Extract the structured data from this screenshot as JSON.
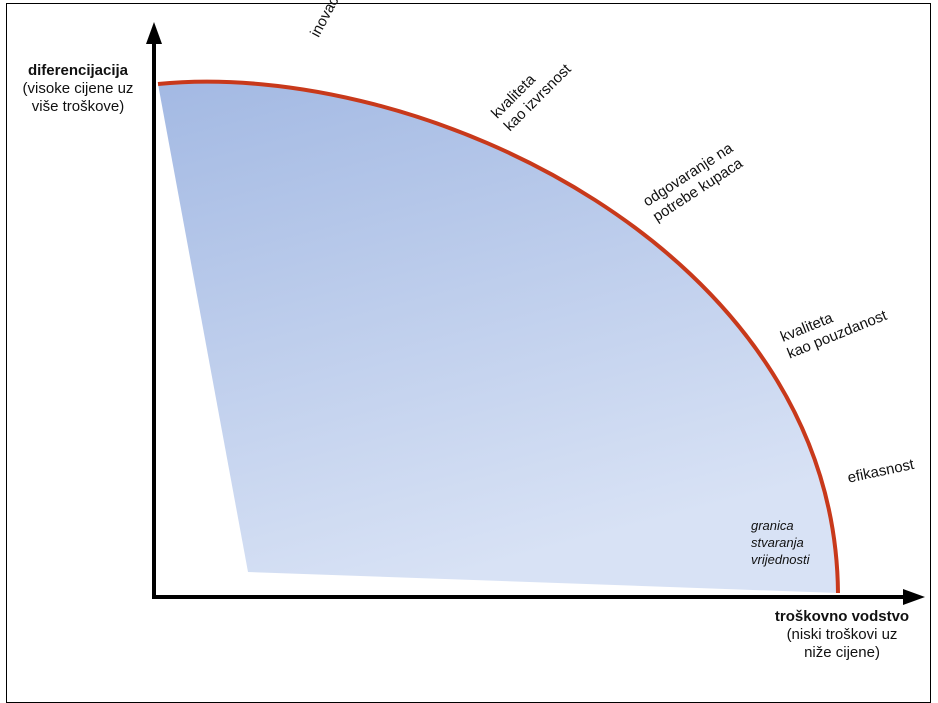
{
  "y_axis": {
    "title": "diferencijacija",
    "subtitle_lines": [
      "(visoke cijene uz",
      "više troškove)"
    ]
  },
  "x_axis": {
    "title": "troškovno vodstvo",
    "subtitle_lines": [
      "(niski troškovi uz",
      "niže cijene)"
    ]
  },
  "frontier_labels": {
    "inovacije": [
      "inovacije"
    ],
    "kvaliteta_izvrsnost": [
      "kvaliteta",
      "kao izvrsnost"
    ],
    "odgovaranje": [
      "odgovaranje na",
      "potrebe kupaca"
    ],
    "kvaliteta_pouzdanost": [
      "kvaliteta",
      "kao pouzdanost"
    ],
    "efikasnost": [
      "efikasnost"
    ]
  },
  "region_label": [
    "granica",
    "stvaranja",
    "vrijednosti"
  ],
  "colors": {
    "frontier": "#c8391b",
    "fill_top": "#a3b9e3",
    "fill_bottom": "#d8e2f5",
    "axis": "#000000"
  }
}
